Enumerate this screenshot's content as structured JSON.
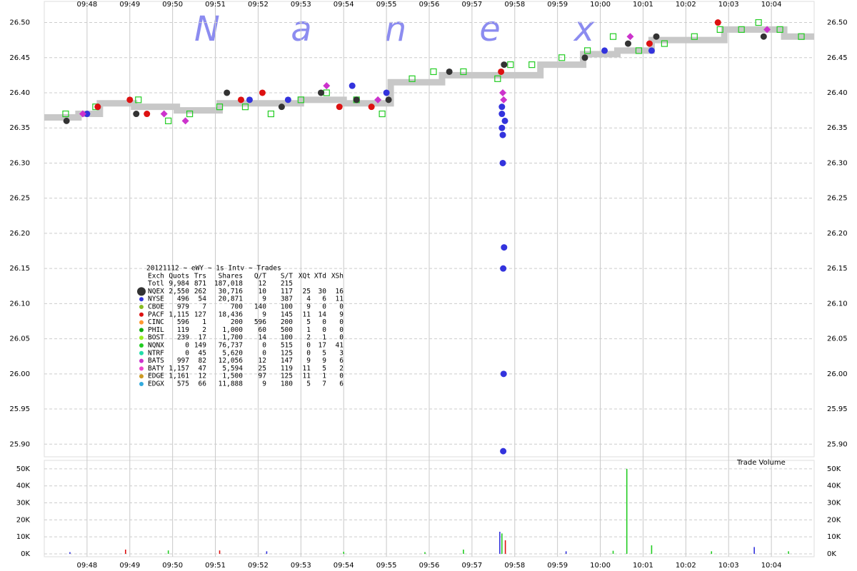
{
  "chart_data": [
    {
      "type": "scatter",
      "watermark": [
        "N",
        "a",
        "n",
        "e",
        "x"
      ],
      "xlim": [
        587.0,
        605.0
      ],
      "xticks": [
        {
          "value": 588,
          "label": "09:48"
        },
        {
          "value": 589,
          "label": "09:49"
        },
        {
          "value": 590,
          "label": "09:50"
        },
        {
          "value": 591,
          "label": "09:51"
        },
        {
          "value": 592,
          "label": "09:52"
        },
        {
          "value": 593,
          "label": "09:53"
        },
        {
          "value": 594,
          "label": "09:54"
        },
        {
          "value": 595,
          "label": "09:55"
        },
        {
          "value": 596,
          "label": "09:56"
        },
        {
          "value": 597,
          "label": "09:57"
        },
        {
          "value": 598,
          "label": "09:58"
        },
        {
          "value": 599,
          "label": "09:59"
        },
        {
          "value": 600,
          "label": "10:00"
        },
        {
          "value": 601,
          "label": "10:01"
        },
        {
          "value": 602,
          "label": "10:02"
        },
        {
          "value": 603,
          "label": "10:03"
        },
        {
          "value": 604,
          "label": "10:04"
        }
      ],
      "ylim": [
        25.882,
        26.53
      ],
      "yticks": [
        {
          "value": 25.9,
          "label": "25.90"
        },
        {
          "value": 25.95,
          "label": "25.95"
        },
        {
          "value": 26.0,
          "label": "26.00"
        },
        {
          "value": 26.05,
          "label": "26.05"
        },
        {
          "value": 26.1,
          "label": "26.10"
        },
        {
          "value": 26.15,
          "label": "26.15"
        },
        {
          "value": 26.2,
          "label": "26.20"
        },
        {
          "value": 26.25,
          "label": "26.25"
        },
        {
          "value": 26.3,
          "label": "26.30"
        },
        {
          "value": 26.35,
          "label": "26.35"
        },
        {
          "value": 26.4,
          "label": "26.40"
        },
        {
          "value": 26.45,
          "label": "26.45"
        },
        {
          "value": 26.5,
          "label": "26.50"
        }
      ],
      "grid": true,
      "quote_band": {
        "color": "#c8c8c8",
        "x": [
          587.0,
          587.8,
          588.3,
          589.1,
          590.1,
          591.1,
          592.0,
          593.0,
          594.0,
          595.1,
          596.3,
          597.4,
          598.6,
          599.6,
          600.4,
          601.2,
          602.3,
          602.9,
          604.3,
          605.0
        ],
        "values": [
          26.365,
          26.37,
          26.385,
          26.38,
          26.375,
          26.385,
          26.385,
          26.39,
          26.385,
          26.415,
          26.425,
          26.425,
          26.44,
          26.455,
          26.46,
          26.475,
          26.475,
          26.49,
          26.48,
          26.48
        ]
      },
      "series": [
        {
          "name": "NQNX",
          "color": "#22cc22",
          "marker": "square",
          "x": [
            587.5,
            588.2,
            589.2,
            589.9,
            590.4,
            591.1,
            591.7,
            592.3,
            593.0,
            593.6,
            594.3,
            594.9,
            595.6,
            596.1,
            596.8,
            597.6,
            597.9,
            598.4,
            599.1,
            599.7,
            600.3,
            600.9,
            601.5,
            602.2,
            602.8,
            603.3,
            603.7,
            604.2,
            604.7
          ],
          "values": [
            26.37,
            26.38,
            26.39,
            26.36,
            26.37,
            26.38,
            26.38,
            26.37,
            26.39,
            26.4,
            26.39,
            26.37,
            26.42,
            26.43,
            26.43,
            26.42,
            26.44,
            26.44,
            26.45,
            26.46,
            26.48,
            26.46,
            26.47,
            26.48,
            26.49,
            26.49,
            26.5,
            26.49,
            26.48
          ]
        },
        {
          "name": "NQEX",
          "color": "#333333",
          "marker": "circle",
          "x": [
            587.52,
            589.15,
            591.27,
            592.55,
            593.47,
            594.3,
            595.05,
            596.47,
            597.75,
            599.64,
            600.65,
            601.31,
            603.82
          ],
          "values": [
            26.36,
            26.37,
            26.4,
            26.38,
            26.4,
            26.39,
            26.39,
            26.43,
            26.44,
            26.45,
            26.47,
            26.48,
            26.48
          ]
        },
        {
          "name": "NYSE",
          "color": "#3333dd",
          "marker": "circle",
          "x": [
            588.0,
            591.8,
            592.7,
            594.2,
            595.0,
            597.7,
            597.7,
            597.7,
            597.72,
            597.72,
            597.75,
            597.73,
            597.74,
            597.73,
            597.77,
            600.1,
            601.2
          ],
          "values": [
            26.37,
            26.39,
            26.39,
            26.41,
            26.4,
            26.38,
            26.37,
            26.35,
            26.34,
            26.3,
            26.18,
            26.15,
            26.0,
            25.89,
            26.36,
            26.46,
            26.46
          ]
        },
        {
          "name": "BATS",
          "color": "#cc33cc",
          "marker": "diamond",
          "x": [
            587.9,
            589.8,
            590.3,
            593.6,
            594.8,
            597.72,
            597.74,
            600.7,
            603.9
          ],
          "values": [
            26.37,
            26.37,
            26.36,
            26.41,
            26.39,
            26.4,
            26.39,
            26.48,
            26.49
          ]
        },
        {
          "name": "PACF",
          "color": "#dd1111",
          "marker": "circle",
          "x": [
            588.25,
            589.0,
            589.4,
            591.6,
            592.1,
            593.9,
            594.65,
            597.68,
            601.15,
            602.75
          ],
          "values": [
            26.38,
            26.39,
            26.37,
            26.39,
            26.4,
            26.38,
            26.38,
            26.43,
            26.47,
            26.5
          ]
        }
      ],
      "stats_table": {
        "title": "20121112 ~ eWY ~ 1s Intv ~ Trades",
        "header": [
          "Exch",
          "Quots",
          "Trs",
          "Shares",
          "Q/T",
          "S/T",
          "XQt",
          "XTd",
          "XSh"
        ],
        "rows": [
          {
            "color": null,
            "cells": [
              "Totl",
              "9,984",
              "871",
              "187,018",
              "12",
              "215"
            ]
          },
          {
            "color": "#333333",
            "cells": [
              "NQEX",
              "2,550",
              "262",
              "30,716",
              "10",
              "117",
              "25",
              "30",
              "16"
            ]
          },
          {
            "color": "#3333dd",
            "cells": [
              "NYSE",
              "496",
              "54",
              "20,871",
              "9",
              "387",
              "4",
              "6",
              "11"
            ]
          },
          {
            "color": "#88bb22",
            "cells": [
              "CBOE",
              "979",
              "7",
              "700",
              "140",
              "100",
              "9",
              "0",
              "0"
            ]
          },
          {
            "color": "#dd1111",
            "cells": [
              "PACF",
              "1,115",
              "127",
              "18,436",
              "9",
              "145",
              "11",
              "14",
              "9"
            ]
          },
          {
            "color": "#ff9933",
            "cells": [
              "CINC",
              "596",
              "1",
              "200",
              "596",
              "200",
              "5",
              "0",
              "0"
            ]
          },
          {
            "color": "#11aa11",
            "cells": [
              "PHIL",
              "119",
              "2",
              "1,000",
              "60",
              "500",
              "1",
              "0",
              "0"
            ]
          },
          {
            "color": "#99ee22",
            "cells": [
              "BOST",
              "239",
              "17",
              "1,700",
              "14",
              "100",
              "2",
              "1",
              "0"
            ]
          },
          {
            "color": "#22cc22",
            "cells": [
              "NQNX",
              "0",
              "149",
              "76,737",
              "0",
              "515",
              "0",
              "17",
              "41"
            ]
          },
          {
            "color": "#22ddaa",
            "cells": [
              "NTRF",
              "0",
              "45",
              "5,620",
              "0",
              "125",
              "0",
              "5",
              "3"
            ]
          },
          {
            "color": "#cc33cc",
            "cells": [
              "BATS",
              "997",
              "82",
              "12,056",
              "12",
              "147",
              "9",
              "9",
              "6"
            ]
          },
          {
            "color": "#ee44cc",
            "cells": [
              "BATY",
              "1,157",
              "47",
              "5,594",
              "25",
              "119",
              "11",
              "5",
              "2"
            ]
          },
          {
            "color": "#cc9922",
            "cells": [
              "EDGE",
              "1,161",
              "12",
              "1,500",
              "97",
              "125",
              "11",
              "1",
              "0"
            ]
          },
          {
            "color": "#33aadd",
            "cells": [
              "EDGX",
              "575",
              "66",
              "11,888",
              "9",
              "180",
              "5",
              "7",
              "6"
            ]
          }
        ]
      }
    },
    {
      "type": "bar",
      "label": "Trade Volume",
      "ylim": [
        -1700,
        55000
      ],
      "yticks": [
        {
          "value": 0,
          "label": "0K"
        },
        {
          "value": 10000,
          "label": "10K"
        },
        {
          "value": 20000,
          "label": "20K"
        },
        {
          "value": 30000,
          "label": "30K"
        },
        {
          "value": 40000,
          "label": "40K"
        },
        {
          "value": 50000,
          "label": "50K"
        }
      ],
      "grid": true,
      "x": [
        587.6,
        588.9,
        589.9,
        591.1,
        592.2,
        594.0,
        595.9,
        596.8,
        597.65,
        597.7,
        597.78,
        599.2,
        600.3,
        600.62,
        601.2,
        602.6,
        603.6,
        604.4
      ],
      "values": [
        1000,
        2500,
        2000,
        2000,
        1500,
        1200,
        1000,
        2500,
        13000,
        12000,
        8000,
        1500,
        1800,
        50000,
        5000,
        1500,
        4000,
        1500
      ],
      "colors": [
        "#3333dd",
        "#dd1111",
        "#22cc22",
        "#dd1111",
        "#3333dd",
        "#22cc22",
        "#22cc22",
        "#22cc22",
        "#3333dd",
        "#22cc22",
        "#dd1111",
        "#3333dd",
        "#22cc22",
        "#22cc22",
        "#22cc22",
        "#22cc22",
        "#3333dd",
        "#22cc22"
      ]
    }
  ]
}
